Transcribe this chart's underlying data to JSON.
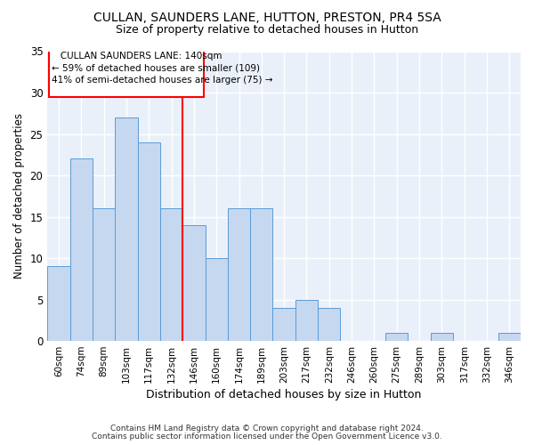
{
  "title1": "CULLAN, SAUNDERS LANE, HUTTON, PRESTON, PR4 5SA",
  "title2": "Size of property relative to detached houses in Hutton",
  "xlabel": "Distribution of detached houses by size in Hutton",
  "ylabel": "Number of detached properties",
  "categories": [
    "60sqm",
    "74sqm",
    "89sqm",
    "103sqm",
    "117sqm",
    "132sqm",
    "146sqm",
    "160sqm",
    "174sqm",
    "189sqm",
    "203sqm",
    "217sqm",
    "232sqm",
    "246sqm",
    "260sqm",
    "275sqm",
    "289sqm",
    "303sqm",
    "317sqm",
    "332sqm",
    "346sqm"
  ],
  "values": [
    9,
    22,
    16,
    27,
    24,
    16,
    14,
    10,
    16,
    16,
    4,
    5,
    4,
    0,
    0,
    1,
    0,
    1,
    0,
    0,
    1
  ],
  "bar_color": "#c5d8f0",
  "bar_edge_color": "#5b9bd5",
  "bar_width": 1.0,
  "ylim": [
    0,
    35
  ],
  "yticks": [
    0,
    5,
    10,
    15,
    20,
    25,
    30,
    35
  ],
  "annotation_line1": "   CULLAN SAUNDERS LANE: 140sqm",
  "annotation_line2": "← 59% of detached houses are smaller (109)",
  "annotation_line3": "41% of semi-detached houses are larger (75) →",
  "vline_index": 5.5,
  "vline_color": "red",
  "footer1": "Contains HM Land Registry data © Crown copyright and database right 2024.",
  "footer2": "Contains public sector information licensed under the Open Government Licence v3.0.",
  "bg_color": "#eaf0fa",
  "grid_color": "#ffffff"
}
